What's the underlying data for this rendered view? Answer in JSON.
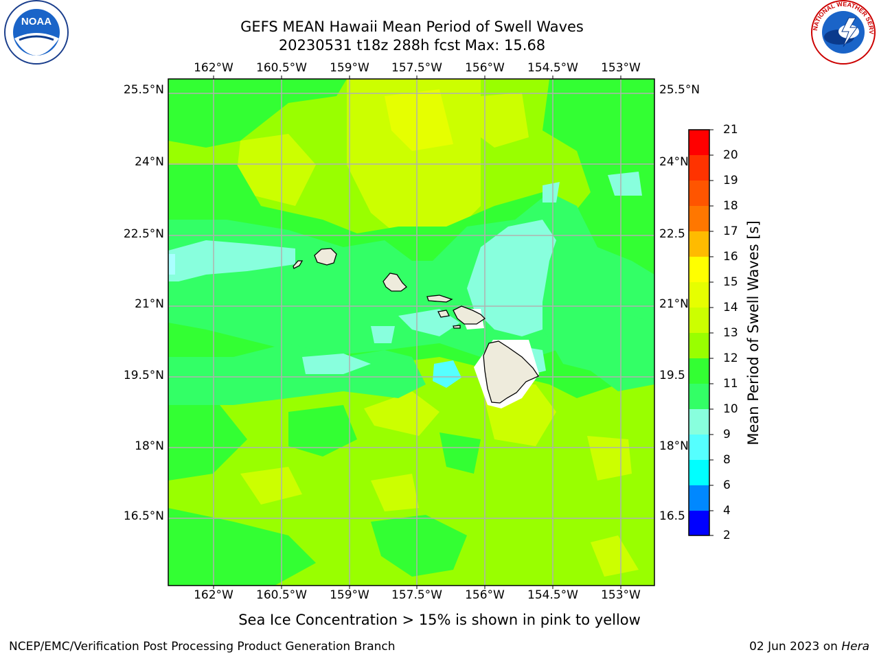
{
  "title": {
    "line1": "GEFS MEAN Hawaii Mean Period of Swell Waves",
    "line2": "20230531 t18z 288h fcst   Max: 15.68"
  },
  "logos": {
    "left": "NOAA",
    "left_ring_text": "NATIONAL OCEANIC AND ATMOSPHERIC ADMINISTRATION · U.S. DEPARTMENT OF COMMERCE",
    "right_ring_text": "NATIONAL WEATHER SERVICE"
  },
  "map": {
    "lon_labels": [
      "162°W",
      "160.5°W",
      "159°W",
      "157.5°W",
      "156°W",
      "154.5°W",
      "153°W"
    ],
    "lat_labels": [
      "25.5°N",
      "24°N",
      "22.5°N",
      "21°N",
      "19.5°N",
      "18°N",
      "16.5°N"
    ],
    "lat_labels_right": [
      "25.5°N",
      "24°N",
      "22.5",
      "21°N",
      "19.5",
      "18°N",
      "16.5"
    ]
  },
  "colorbar": {
    "title": "Mean Period of Swell Waves [s]",
    "ticks": [
      "21",
      "20",
      "19",
      "18",
      "17",
      "16",
      "15",
      "14",
      "13",
      "12",
      "11",
      "10",
      "9",
      "8",
      "6",
      "4",
      "2"
    ],
    "colors": [
      "#ff0000",
      "#ff3300",
      "#ff5500",
      "#ff7700",
      "#ff9900",
      "#ffbb00",
      "#ffff00",
      "#e6ff00",
      "#ccff00",
      "#99ff00",
      "#33ff33",
      "#33ff66",
      "#88ffdd",
      "#55ffff",
      "#00ffff",
      "#0088ff",
      "#0000ff"
    ]
  },
  "caption": "Sea Ice Concentration > 15% is shown in pink to yellow",
  "footer": {
    "left": "NCEP/EMC/Verification Post Processing Product Generation Branch",
    "right_date": "02 Jun 2023 on ",
    "right_host": "Hera"
  }
}
